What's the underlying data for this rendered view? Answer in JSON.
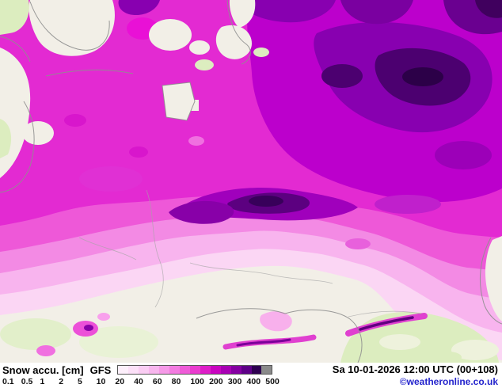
{
  "legend": {
    "title": "Snow accu. [cm]",
    "model": "GFS",
    "scale_values": [
      "0.1",
      "0.5",
      "1",
      "2",
      "5",
      "10",
      "20",
      "40",
      "60",
      "80",
      "100",
      "200",
      "300",
      "400",
      "500"
    ],
    "scale_colors": [
      "#fdeffb",
      "#fce0f8",
      "#facdf3",
      "#f8b6ee",
      "#f69ae8",
      "#f37ce1",
      "#ef5cd8",
      "#ea3ccf",
      "#de1ec8",
      "#c905c0",
      "#a800b4",
      "#8500a2",
      "#5e0087",
      "#2e0050",
      "#8a8a8a"
    ]
  },
  "footer": {
    "datetime": "Sa 10-01-2026 12:00 UTC (00+108)",
    "copyright": "©weatheronline.co.uk"
  },
  "map_colors": {
    "sea_no_data": "#f2efe7",
    "land_no_snow_green": "#dcedbf",
    "snow_light_pink": "#fbd6f4",
    "snow_magenta": "#ee58d8",
    "snow_deep_magenta": "#e32ad2",
    "snow_purple": "#bc00cc",
    "snow_dark_purple": "#4c0070",
    "coastline_gray": "#8f8f8f"
  }
}
